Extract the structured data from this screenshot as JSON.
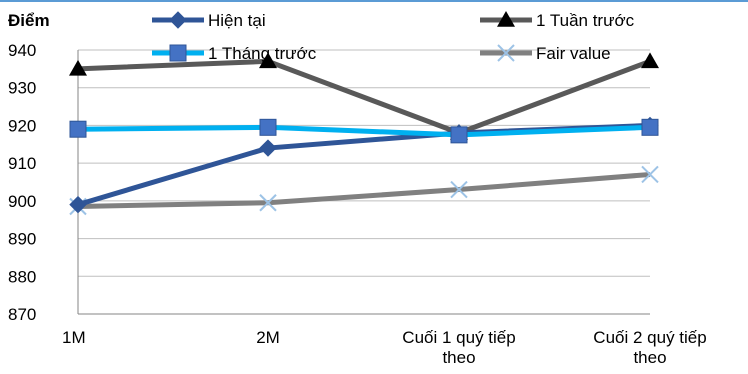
{
  "chart_data": {
    "type": "line",
    "ylabel": "Điểm",
    "xlabel": "",
    "title": "",
    "ylim": [
      870,
      940
    ],
    "yticks": [
      870,
      880,
      890,
      900,
      910,
      920,
      930,
      940
    ],
    "categories": [
      "1M",
      "2M",
      "Cuối 1 quý tiếp theo",
      "Cuối 2 quý tiếp theo"
    ],
    "category_lines": [
      [
        "1M"
      ],
      [
        "2M"
      ],
      [
        "Cuối 1 quý tiếp",
        "theo"
      ],
      [
        "Cuối 2 quý tiếp",
        "theo"
      ]
    ],
    "grid": true,
    "legend_position": "top",
    "series": [
      {
        "name": "Hiện tại",
        "values": [
          899,
          914,
          918,
          920
        ],
        "color": "#2f5597",
        "marker": "diamond"
      },
      {
        "name": "1 Tuần trước",
        "values": [
          935,
          937,
          918,
          937
        ],
        "color": "#595959",
        "marker": "triangle"
      },
      {
        "name": "1 Tháng trước",
        "values": [
          919,
          919.5,
          917.5,
          919.5
        ],
        "color": "#00b0f0",
        "marker": "square"
      },
      {
        "name": "Fair value",
        "values": [
          898.5,
          899.5,
          903,
          907
        ],
        "color": "#808080",
        "marker": "x"
      }
    ]
  }
}
